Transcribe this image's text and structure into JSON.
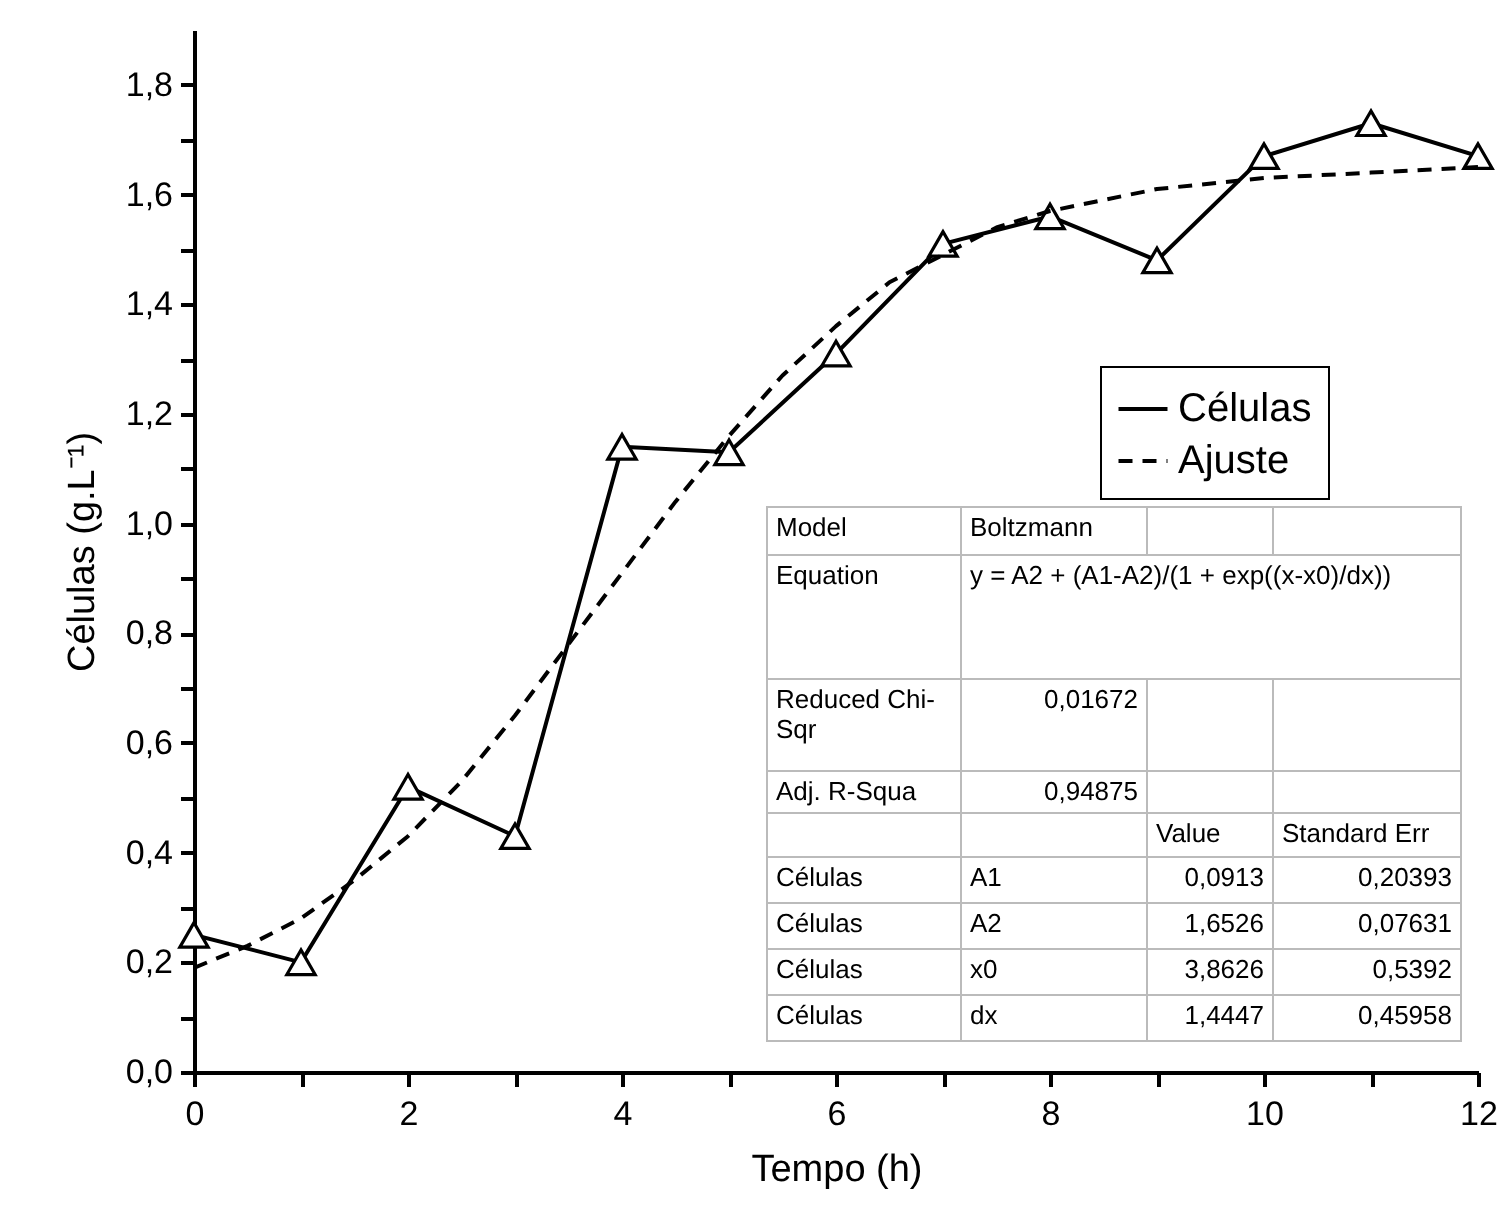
{
  "chart_data": {
    "type": "line",
    "xlabel": "Tempo (h)",
    "ylabel": "Células (g.L⁻¹)",
    "x": [
      0,
      1,
      2,
      3,
      4,
      5,
      6,
      7,
      8,
      9,
      10,
      11,
      12
    ],
    "series": [
      {
        "name": "Células",
        "color": "#000000",
        "marker": "triangle",
        "line_style": "solid",
        "values": [
          0.25,
          0.2,
          0.52,
          0.43,
          1.14,
          1.13,
          1.31,
          1.51,
          1.56,
          1.48,
          1.67,
          1.73,
          1.67
        ]
      },
      {
        "name": "Ajuste",
        "type": "line",
        "color": "#000000",
        "marker": "none",
        "line_style": "dashed",
        "x": [
          0,
          0.5,
          1,
          1.5,
          2,
          2.5,
          3,
          3.5,
          4,
          4.5,
          5,
          5.5,
          6,
          6.5,
          7,
          7.5,
          8,
          9,
          10,
          11,
          12
        ],
        "values": [
          0.19,
          0.23,
          0.28,
          0.35,
          0.43,
          0.53,
          0.65,
          0.78,
          0.91,
          1.04,
          1.16,
          1.27,
          1.36,
          1.44,
          1.49,
          1.54,
          1.57,
          1.61,
          1.63,
          1.64,
          1.65
        ]
      }
    ],
    "xlim": [
      0,
      12
    ],
    "ylim": [
      0,
      1.9
    ],
    "xticks": [
      0,
      {
        "value": 1,
        "label": null
      },
      2,
      {
        "value": 3,
        "label": null
      },
      4,
      {
        "value": 5,
        "label": null
      },
      6,
      {
        "value": 7,
        "label": null
      },
      8,
      {
        "value": 9,
        "label": null
      },
      10,
      {
        "value": 11,
        "label": null
      },
      12
    ],
    "yticks": [
      {
        "value": 0,
        "label": "0,0"
      },
      {
        "value": 0.1,
        "label": null
      },
      {
        "value": 0.2,
        "label": "0,2"
      },
      {
        "value": 0.3,
        "label": null
      },
      {
        "value": 0.4,
        "label": "0,4"
      },
      {
        "value": 0.5,
        "label": null
      },
      {
        "value": 0.6,
        "label": "0,6"
      },
      {
        "value": 0.7,
        "label": null
      },
      {
        "value": 0.8,
        "label": "0,8"
      },
      {
        "value": 0.9,
        "label": null
      },
      {
        "value": 1.0,
        "label": "1,0"
      },
      {
        "value": 1.1,
        "label": null
      },
      {
        "value": 1.2,
        "label": "1,2"
      },
      {
        "value": 1.3,
        "label": null
      },
      {
        "value": 1.4,
        "label": "1,4"
      },
      {
        "value": 1.5,
        "label": null
      },
      {
        "value": 1.6,
        "label": "1,6"
      },
      {
        "value": 1.7,
        "label": null
      },
      {
        "value": 1.8,
        "label": "1,8"
      }
    ],
    "legend": "right",
    "grid": false,
    "annotations": [
      "Model",
      "Boltzmann",
      "Equation",
      "y = A2 + (A1-A2)/(1 + exp((x-x0)/dx))",
      "Reduced Chi-Sqr",
      "0,01672",
      "Adj. R-Squa",
      "0,94875",
      "Value",
      "Standard Err",
      "Células",
      "A1",
      "0,0913",
      "0,20393",
      "Células",
      "A2",
      "1,6526",
      "0,07631",
      "Células",
      "x0",
      "3,8626",
      "0,5392",
      "Células",
      "dx",
      "1,4447",
      "0,45958"
    ]
  }
}
